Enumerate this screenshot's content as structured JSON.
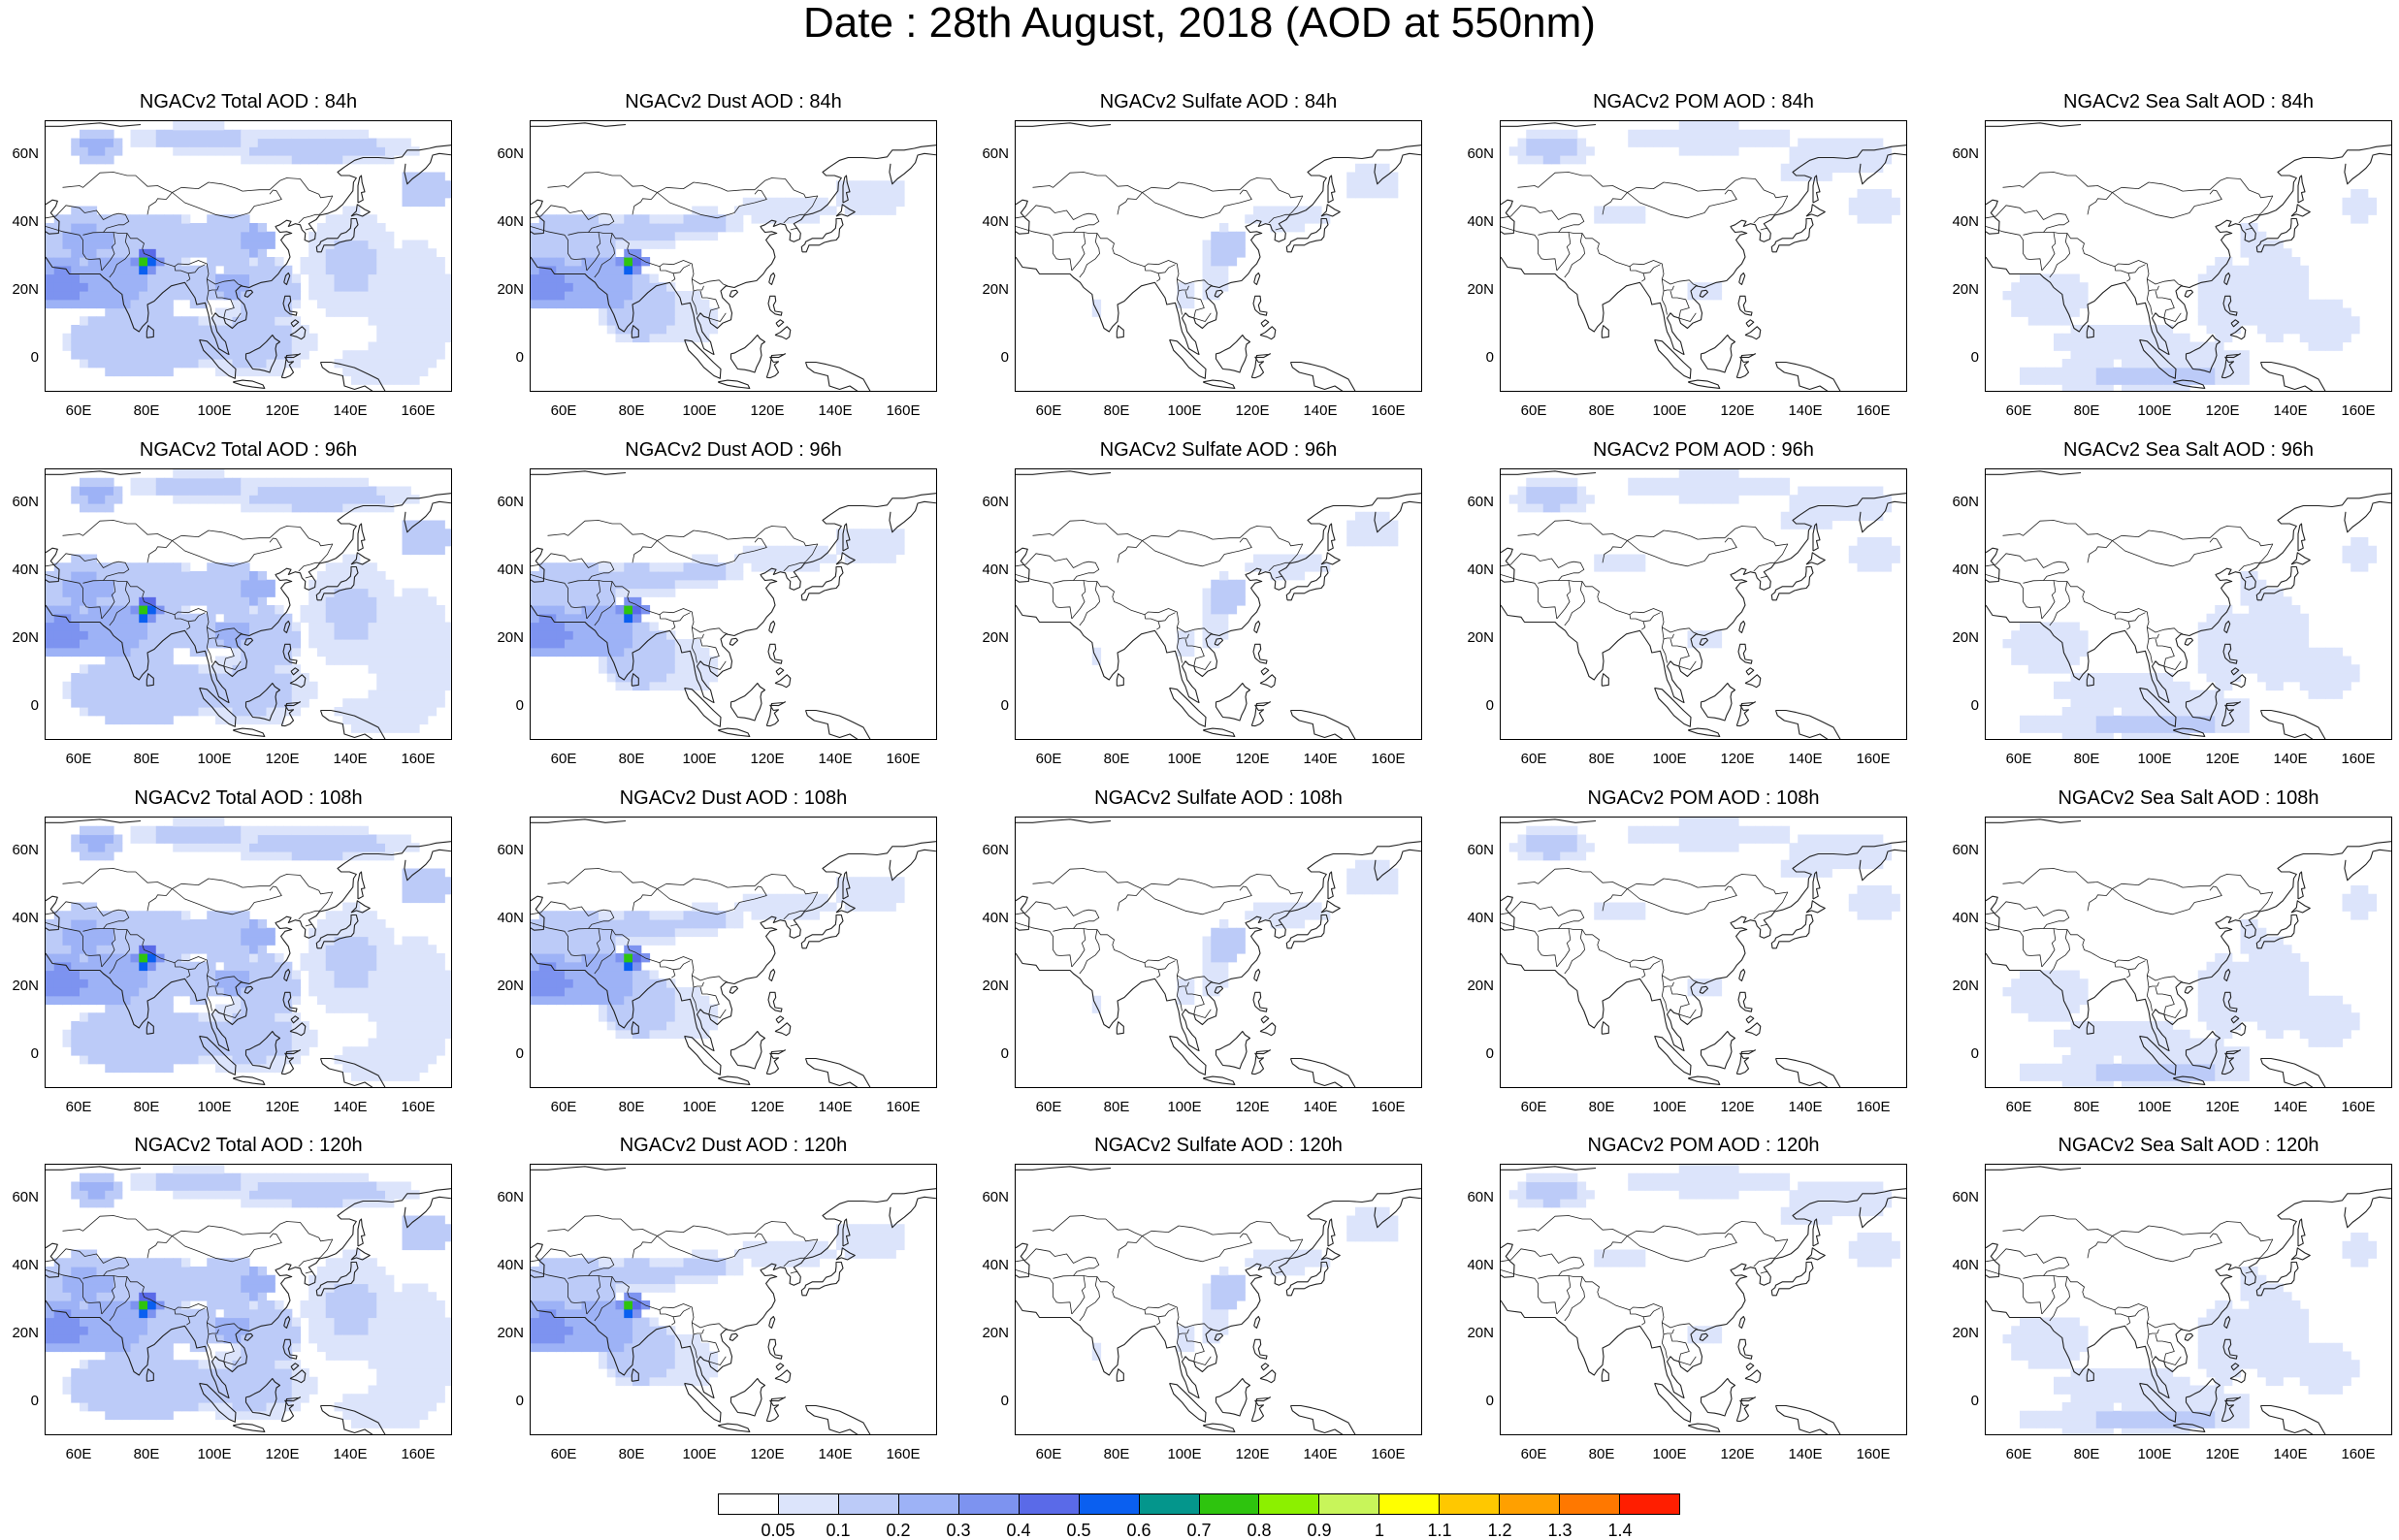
{
  "title": "Date : 28th August, 2018 (AOD at 550nm)",
  "panels": [
    {
      "title": "NGACv2 Total AOD : 84h",
      "field": "total",
      "hour": "84h"
    },
    {
      "title": "NGACv2 Dust AOD : 84h",
      "field": "dust",
      "hour": "84h"
    },
    {
      "title": "NGACv2 Sulfate AOD : 84h",
      "field": "sulfate",
      "hour": "84h"
    },
    {
      "title": "NGACv2 POM AOD : 84h",
      "field": "pom",
      "hour": "84h"
    },
    {
      "title": "NGACv2 Sea Salt AOD : 84h",
      "field": "seasalt",
      "hour": "84h"
    },
    {
      "title": "NGACv2 Total AOD : 96h",
      "field": "total",
      "hour": "96h"
    },
    {
      "title": "NGACv2 Dust AOD : 96h",
      "field": "dust",
      "hour": "96h"
    },
    {
      "title": "NGACv2 Sulfate AOD : 96h",
      "field": "sulfate",
      "hour": "96h"
    },
    {
      "title": "NGACv2 POM AOD : 96h",
      "field": "pom",
      "hour": "96h"
    },
    {
      "title": "NGACv2 Sea Salt AOD : 96h",
      "field": "seasalt",
      "hour": "96h"
    },
    {
      "title": "NGACv2 Total AOD : 108h",
      "field": "total",
      "hour": "108h"
    },
    {
      "title": "NGACv2 Dust AOD : 108h",
      "field": "dust",
      "hour": "108h"
    },
    {
      "title": "NGACv2 Sulfate AOD : 108h",
      "field": "sulfate",
      "hour": "108h"
    },
    {
      "title": "NGACv2 POM AOD : 108h",
      "field": "pom",
      "hour": "108h"
    },
    {
      "title": "NGACv2 Sea Salt AOD : 108h",
      "field": "seasalt",
      "hour": "108h"
    },
    {
      "title": "NGACv2 Total AOD : 120h",
      "field": "total",
      "hour": "120h"
    },
    {
      "title": "NGACv2 Dust AOD : 120h",
      "field": "dust",
      "hour": "120h"
    },
    {
      "title": "NGACv2 Sulfate AOD : 120h",
      "field": "sulfate",
      "hour": "120h"
    },
    {
      "title": "NGACv2 POM AOD : 120h",
      "field": "pom",
      "hour": "120h"
    },
    {
      "title": "NGACv2 Sea Salt  AOD : 120h",
      "field": "seasalt",
      "hour": "120h"
    }
  ],
  "lat_ticks": [
    "60N",
    "40N",
    "20N",
    "0"
  ],
  "lon_ticks": [
    "60E",
    "80E",
    "100E",
    "120E",
    "140E",
    "160E"
  ],
  "colorbar": {
    "labels": [
      "0.05",
      "0.1",
      "0.2",
      "0.3",
      "0.4",
      "0.5",
      "0.6",
      "0.7",
      "0.8",
      "0.9",
      "1",
      "1.1",
      "1.2",
      "1.3",
      "1.4"
    ],
    "colors": [
      "#ffffff",
      "#dce4fb",
      "#bccbf8",
      "#9db2f6",
      "#7d93f0",
      "#5a6ae8",
      "#0a5ff0",
      "#04968c",
      "#2ec40e",
      "#8cf000",
      "#c8f55a",
      "#ffff00",
      "#ffc800",
      "#ffa000",
      "#ff7800",
      "#ff1e00"
    ]
  }
}
